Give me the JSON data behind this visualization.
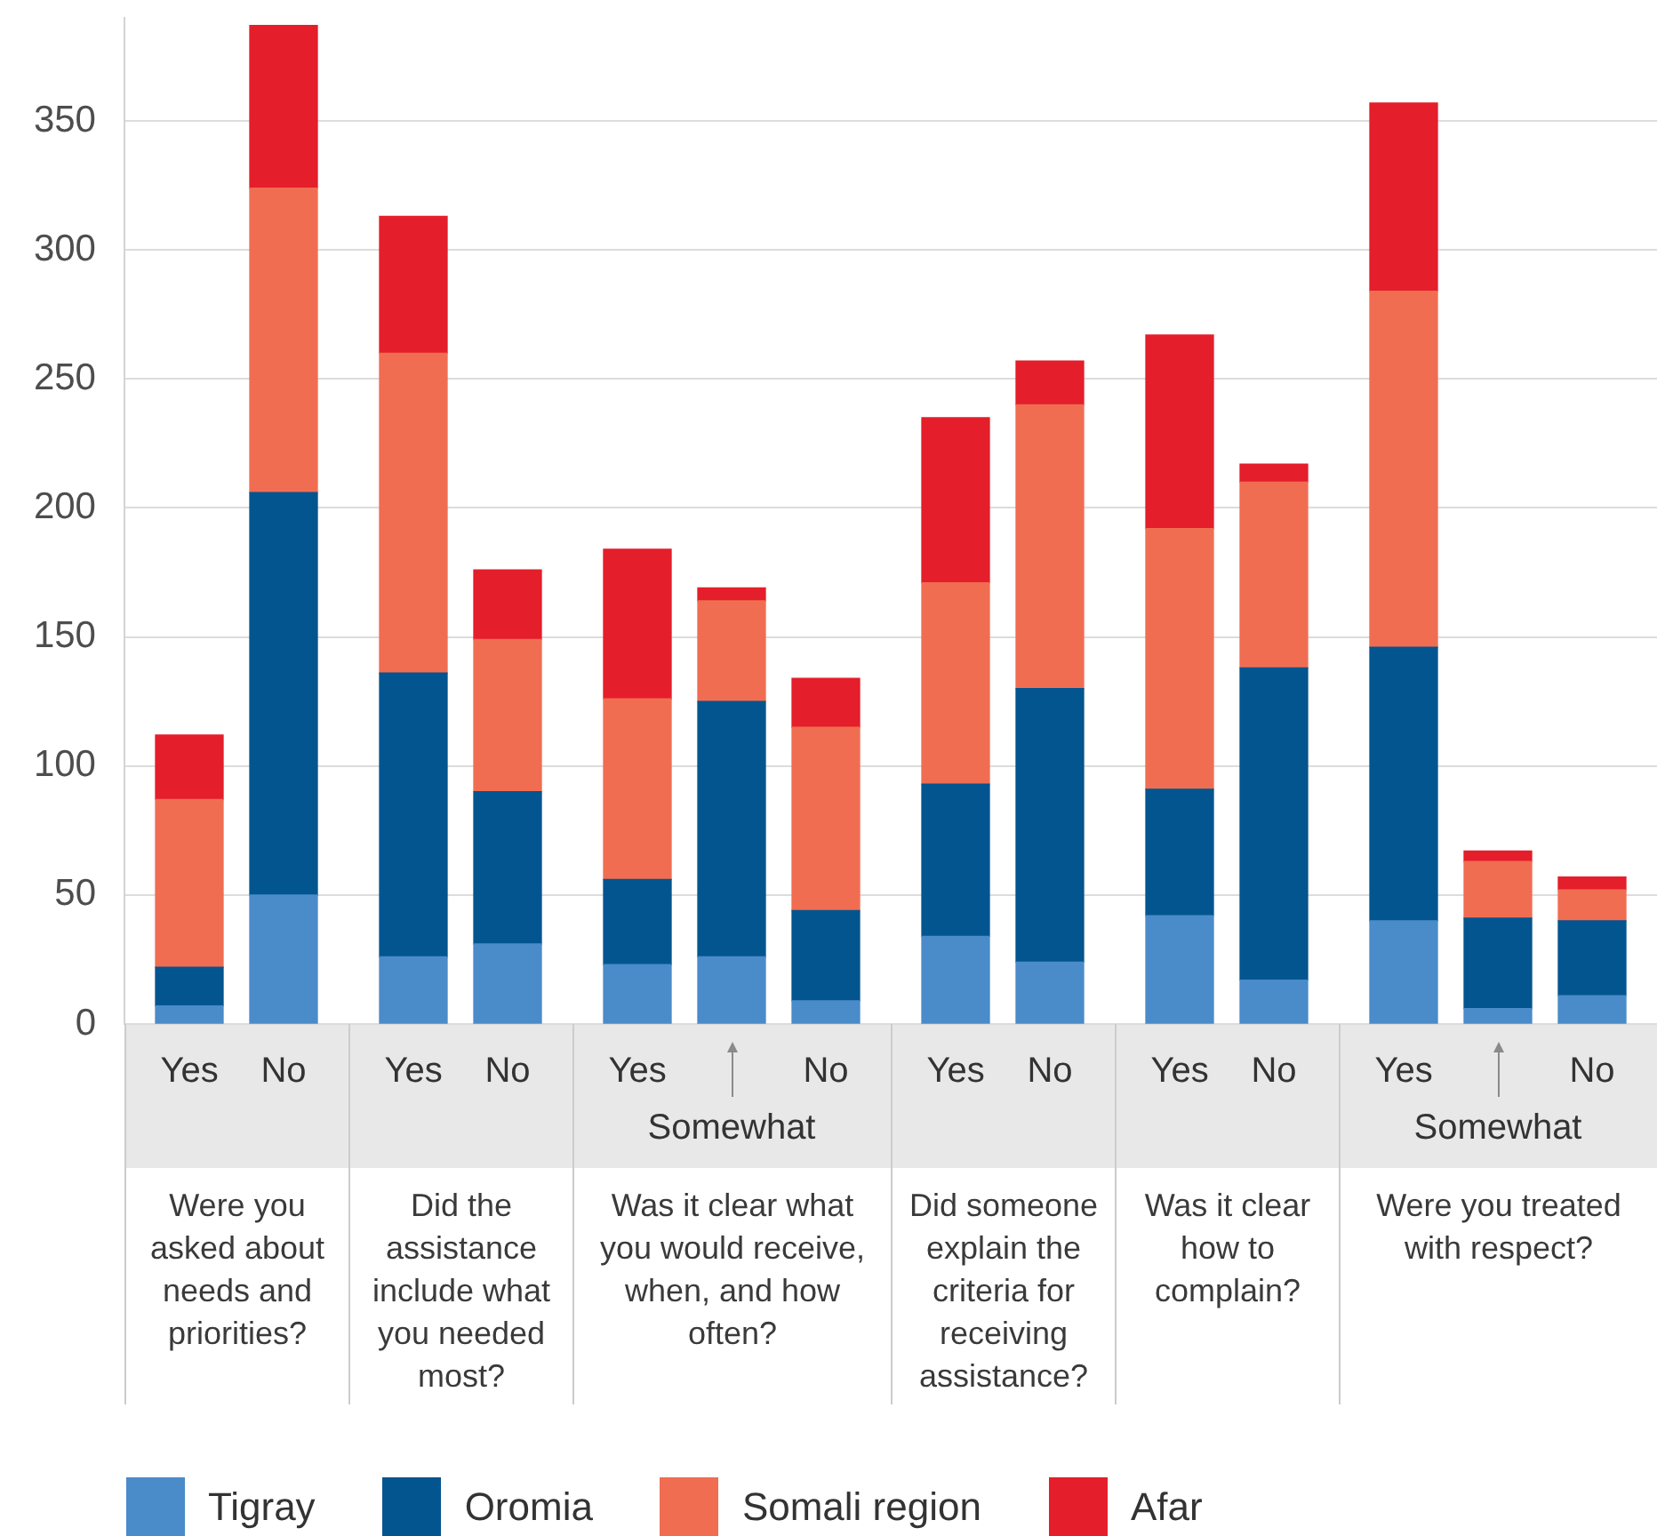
{
  "chart_data": [
    {
      "type": "bar",
      "stacked": true,
      "categories": [
        "Yes",
        "No"
      ],
      "xlabel": "Were you asked about needs and priorities?",
      "series": [
        {
          "name": "Tigray",
          "color": "#4a8bc9",
          "values": [
            7,
            50
          ]
        },
        {
          "name": "Oromia",
          "color": "#03558f",
          "values": [
            15,
            156
          ]
        },
        {
          "name": "Somali region",
          "color": "#f06d52",
          "values": [
            65,
            118
          ]
        },
        {
          "name": "Afar",
          "color": "#e41e2a",
          "values": [
            25,
            63
          ]
        }
      ],
      "ylim": [
        0,
        390
      ],
      "yticks": [
        0,
        50,
        100,
        150,
        200,
        250,
        300,
        350
      ],
      "grid": "y",
      "legend": "bottom"
    },
    {
      "type": "bar",
      "stacked": true,
      "categories": [
        "Yes",
        "No"
      ],
      "xlabel": "Did the assistance include what you needed most?",
      "series": [
        {
          "color": "#4a8bc9",
          "values": [
            26,
            31
          ]
        },
        {
          "color": "#03558f",
          "values": [
            110,
            59
          ]
        },
        {
          "color": "#f06d52",
          "values": [
            124,
            59
          ]
        },
        {
          "color": "#e41e2a",
          "values": [
            53,
            27
          ]
        }
      ],
      "yticks": [
        0,
        50,
        100,
        150,
        200,
        250,
        300,
        350
      ],
      "grid": "y",
      "tick_labels": "x"
    },
    {
      "type": "bar",
      "stacked": true,
      "categories": [
        "Yes",
        "Somewhat",
        "No"
      ],
      "xlabel": "Was it clear what you would receive, when, and how often?",
      "series": [
        {
          "color": "#4a8bc9",
          "values": [
            23,
            26,
            9
          ]
        },
        {
          "color": "#03558f",
          "values": [
            33,
            99,
            35
          ]
        },
        {
          "color": "#f06d52",
          "values": [
            70,
            39,
            71
          ]
        },
        {
          "color": "#e41e2a",
          "values": [
            58,
            5,
            19
          ]
        }
      ],
      "yticks": [
        0,
        50,
        100,
        150,
        200,
        250,
        300,
        350
      ],
      "grid": "y",
      "tick_labels": "x"
    },
    {
      "type": "bar",
      "stacked": true,
      "categories": [
        "Yes",
        "No"
      ],
      "xlabel": "Did someone explain the criteria for receiving assistance?",
      "series": [
        {
          "color": "#4a8bc9",
          "values": [
            34,
            24
          ]
        },
        {
          "color": "#03558f",
          "values": [
            59,
            106
          ]
        },
        {
          "color": "#f06d52",
          "values": [
            78,
            110
          ]
        },
        {
          "color": "#e41e2a",
          "values": [
            64,
            17
          ]
        }
      ],
      "yticks": [
        0,
        50,
        100,
        150,
        200,
        250,
        300,
        350
      ],
      "grid": "y",
      "tick_labels": "x"
    },
    {
      "type": "bar",
      "stacked": true,
      "categories": [
        "Yes",
        "No"
      ],
      "xlabel": "Was it clear how to complain?",
      "series": [
        {
          "color": "#4a8bc9",
          "values": [
            42,
            17
          ]
        },
        {
          "color": "#03558f",
          "values": [
            49,
            121
          ]
        },
        {
          "color": "#f06d52",
          "values": [
            101,
            72
          ]
        },
        {
          "color": "#e41e2a",
          "values": [
            75,
            7
          ]
        }
      ],
      "yticks": [
        0,
        50,
        100,
        150,
        200,
        250,
        300,
        350
      ],
      "grid": "y",
      "tick_labels": "x"
    },
    {
      "type": "bar",
      "stacked": true,
      "categories": [
        "Yes",
        "Somewhat",
        "No"
      ],
      "xlabel": "Were you treated with respect?",
      "series": [
        {
          "color": "#4a8bc9",
          "values": [
            40,
            6,
            11
          ]
        },
        {
          "color": "#03558f",
          "values": [
            106,
            35,
            29
          ]
        },
        {
          "color": "#f06d52",
          "values": [
            138,
            22,
            12
          ]
        },
        {
          "color": "#e41e2a",
          "values": [
            73,
            4,
            5
          ]
        }
      ],
      "yticks": [
        0,
        50,
        100,
        150,
        200,
        250,
        300,
        350
      ],
      "grid": "y",
      "tick_labels": "x"
    }
  ]
}
